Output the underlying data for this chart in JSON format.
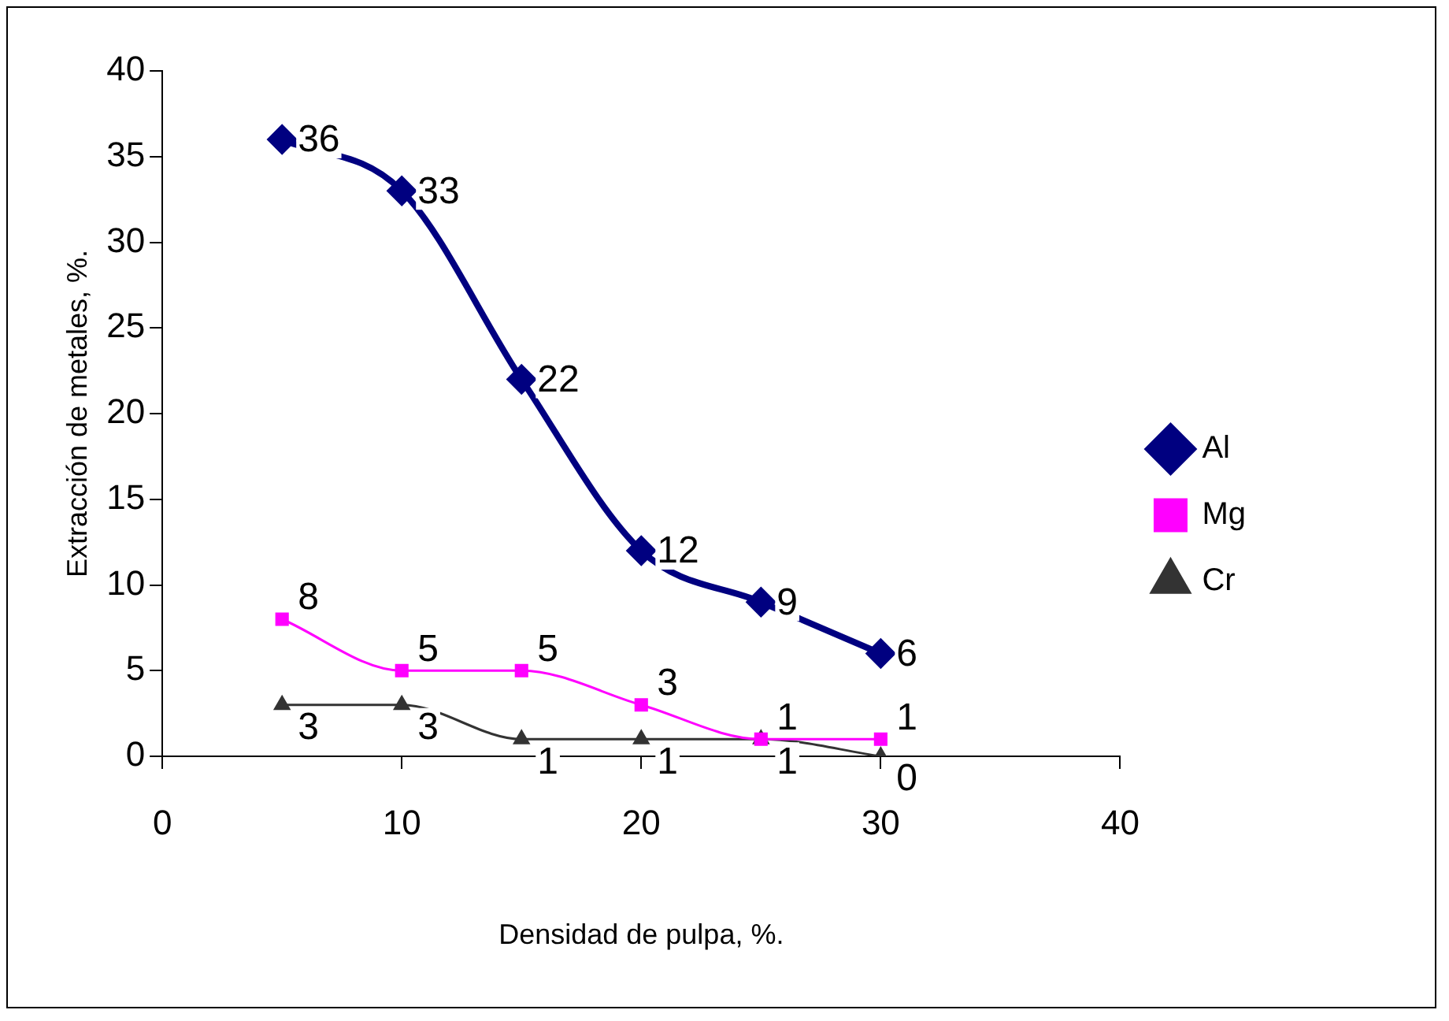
{
  "chart_data": {
    "type": "line",
    "xlabel": "Densidad de pulpa, %.",
    "ylabel": "Extracción de metales, %.",
    "x": [
      5,
      10,
      15,
      20,
      25,
      30
    ],
    "series": [
      {
        "name": "Al",
        "color": "#000080",
        "marker": "diamond",
        "values": [
          36,
          33,
          22,
          12,
          9,
          6
        ]
      },
      {
        "name": "Mg",
        "color": "#ff00ff",
        "marker": "square",
        "values": [
          8,
          5,
          5,
          3,
          1,
          1
        ]
      },
      {
        "name": "Cr",
        "color": "#333333",
        "marker": "triangle",
        "values": [
          3,
          3,
          1,
          1,
          1,
          0
        ]
      }
    ],
    "xlim": [
      0,
      40
    ],
    "xticks": [
      0,
      10,
      20,
      30,
      40
    ],
    "ylim": [
      0,
      40
    ],
    "yticks": [
      0,
      5,
      10,
      15,
      20,
      25,
      30,
      35,
      40
    ],
    "grid": false,
    "legend": "right",
    "data_labels": true
  }
}
